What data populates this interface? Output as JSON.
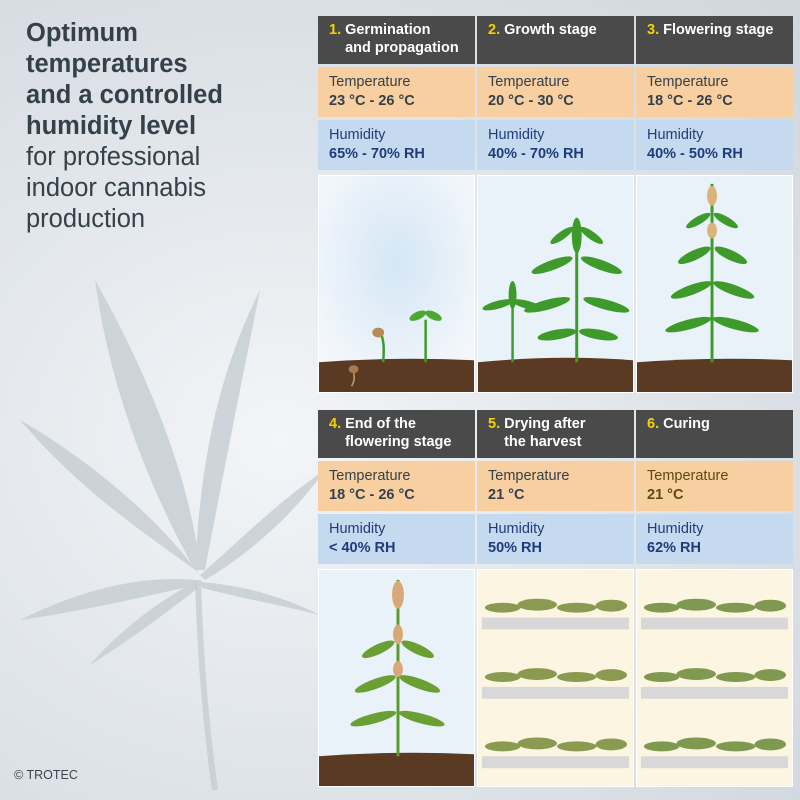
{
  "headline": {
    "strong": [
      "Optimum",
      "temperatures",
      "and a controlled",
      "humidity level"
    ],
    "light": [
      "for professional",
      "indoor cannabis",
      "production"
    ]
  },
  "copyright": "© TROTEC",
  "colors": {
    "title_bg": "#4a4a4a",
    "number": "#f4d300",
    "temperature_bg": "#f8cfa0",
    "humidity_bg": "#c5d9ef",
    "humidity_text": "#1f3c7a",
    "soil": "#5a3a22",
    "leaf": "#3f9a2c"
  },
  "stages": [
    {
      "num": "1.",
      "title1": "Germination",
      "title2": "and propagation",
      "temp_label": "Temperature",
      "temp_value": "23 °C - 26 °C",
      "hum_label": "Humidity",
      "hum_value": "65% - 70% RH",
      "image": "germination-illustration"
    },
    {
      "num": "2.",
      "title1": "Growth stage",
      "title2": "",
      "temp_label": "Temperature",
      "temp_value": "20 °C - 30 °C",
      "hum_label": "Humidity",
      "hum_value": "40% - 70% RH",
      "image": "growth-illustration"
    },
    {
      "num": "3.",
      "title1": "Flowering stage",
      "title2": "",
      "temp_label": "Temperature",
      "temp_value": "18 °C - 26 °C",
      "hum_label": "Humidity",
      "hum_value": "40% - 50% RH",
      "image": "flowering-illustration"
    },
    {
      "num": "4.",
      "title1": "End of the",
      "title2": "flowering stage",
      "temp_label": "Temperature",
      "temp_value": "18 °C - 26 °C",
      "hum_label": "Humidity",
      "hum_value": "< 40% RH",
      "image": "end-flowering-illustration"
    },
    {
      "num": "5.",
      "title1": "Drying after",
      "title2": "the harvest",
      "temp_label": "Temperature",
      "temp_value": "21 °C",
      "hum_label": "Humidity",
      "hum_value": "50% RH",
      "image": "drying-illustration"
    },
    {
      "num": "6.",
      "title1": "Curing",
      "title2": "",
      "temp_label": "Temperature",
      "temp_value": "21 °C",
      "hum_label": "Humidity",
      "hum_value": "62% RH",
      "image": "curing-illustration"
    }
  ]
}
